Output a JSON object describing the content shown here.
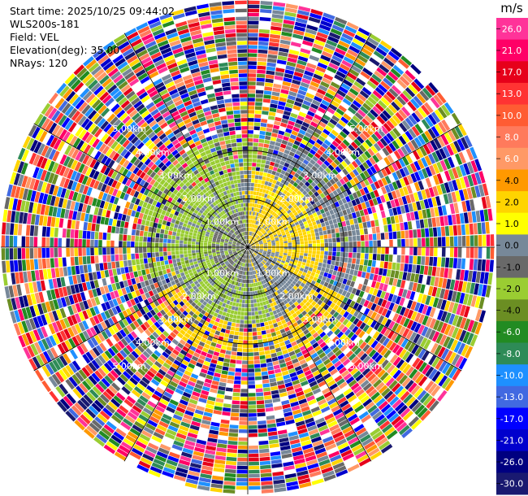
{
  "info": {
    "start_time": "Start time: 2025/10/25 09:44:02",
    "station": "WLS200s-181",
    "field": "Field: VEL",
    "elevation": "Elevation(deg): 35.00",
    "nrays": "NRays: 120"
  },
  "colorbar": {
    "units": "m/s",
    "ticks": [
      "26.0",
      "21.0",
      "17.0",
      "13.0",
      "10.0",
      "8.0",
      "6.0",
      "4.0",
      "2.0",
      "1.0",
      "0.0",
      "-1.0",
      "-2.0",
      "-4.0",
      "-6.0",
      "-8.0",
      "-10.0",
      "-13.0",
      "-17.0",
      "-21.0",
      "-26.0",
      "-30.0"
    ],
    "colors": [
      "#ff3399",
      "#ff0066",
      "#e6001a",
      "#ff3333",
      "#ff5c33",
      "#ff7a5c",
      "#ff9966",
      "#ff9900",
      "#ffd400",
      "#ffff00",
      "#778899",
      "#696969",
      "#9acd32",
      "#6b8e23",
      "#228b22",
      "#2e8b57",
      "#1e90ff",
      "#4169e1",
      "#0000ff",
      "#0000cd",
      "#000080",
      "#191970"
    ]
  },
  "chart_data": {
    "type": "heatmap",
    "field": "VEL",
    "units": "m/s",
    "elevation_deg": 35.0,
    "n_rays": 120,
    "ring_labels": [
      "1.00km",
      "2.00km",
      "3.00km",
      "4.00km",
      "5.00km"
    ],
    "color_levels": [
      30,
      26,
      21,
      17,
      13,
      10,
      8,
      6,
      4,
      2,
      1,
      0,
      -1,
      -2,
      -4,
      -6,
      -8,
      -10,
      -13,
      -17,
      -21,
      -26,
      -30
    ],
    "regions": [
      {
        "range_km": [
          0.0,
          1.0
        ],
        "values": "mixed 0 to +4 (north-east) and -2 to -6 (south-west)"
      },
      {
        "range_km": [
          1.0,
          2.3
        ],
        "values": "gray ~0 background, -1 to -2 west half, +1 to +4 east half"
      },
      {
        "range_km": [
          2.3,
          3.3
        ],
        "values": "noisy, -2 band in north-west, +2 band in south"
      },
      {
        "range_km": [
          3.3,
          6.0
        ],
        "values": "random noise spanning full range"
      }
    ]
  }
}
